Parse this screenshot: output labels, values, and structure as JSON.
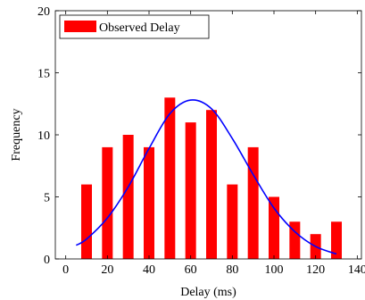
{
  "chart_data": {
    "type": "bar",
    "xlabel": "Delay (ms)",
    "ylabel": "Frequency",
    "xlim": [
      -5,
      142
    ],
    "ylim": [
      0,
      20
    ],
    "x_ticks": [
      0,
      20,
      40,
      60,
      80,
      100,
      120,
      140
    ],
    "y_ticks": [
      0,
      5,
      10,
      15,
      20
    ],
    "grid": false,
    "legend_position": "top-left",
    "series": [
      {
        "name": "Observed Delay",
        "kind": "bar",
        "color": "#ff0000",
        "x": [
          10,
          20,
          30,
          40,
          50,
          60,
          70,
          80,
          90,
          100,
          110,
          120,
          130
        ],
        "values": [
          6,
          9,
          10,
          9,
          13,
          11,
          12,
          6,
          9,
          5,
          3,
          2,
          3
        ]
      },
      {
        "kind": "line",
        "color": "#0000ff",
        "x": [
          5,
          10,
          20,
          30,
          40,
          50,
          60,
          70,
          80,
          90,
          100,
          110,
          120,
          130
        ],
        "values": [
          1.1,
          1.6,
          3.3,
          5.8,
          8.9,
          11.7,
          12.8,
          12.1,
          9.7,
          6.8,
          4.1,
          2.2,
          1.0,
          0.4
        ]
      }
    ]
  }
}
